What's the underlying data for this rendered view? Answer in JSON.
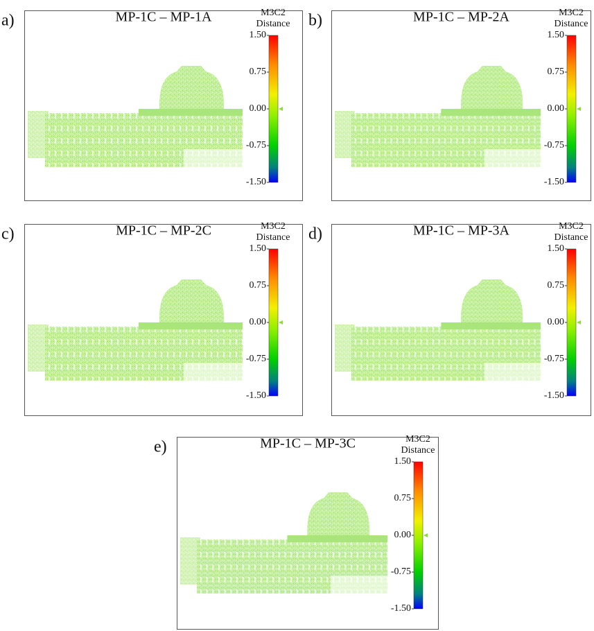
{
  "panels": [
    {
      "label": "a)",
      "title": "MP-1C – MP-1A",
      "colorbar": {
        "title": [
          "M3C2",
          "Distance"
        ],
        "lim": [
          -1.5,
          1.5
        ],
        "ticks": [
          {
            "value": 1.5,
            "label": "1.50"
          },
          {
            "value": 0.75,
            "label": "0.75"
          },
          {
            "value": 0,
            "label": "0.00"
          },
          {
            "value": -0.75,
            "label": "-0.75"
          },
          {
            "value": -1.5,
            "label": "-1.50"
          }
        ]
      }
    },
    {
      "label": "b)",
      "title": "MP-1C – MP-2A",
      "colorbar": {
        "title": [
          "M3C2",
          "Distance"
        ],
        "lim": [
          -1.5,
          1.5
        ],
        "ticks": [
          {
            "value": 1.5,
            "label": "1.50"
          },
          {
            "value": 0.75,
            "label": "0.75"
          },
          {
            "value": 0,
            "label": "0.00"
          },
          {
            "value": -0.75,
            "label": "-0.75"
          },
          {
            "value": -1.5,
            "label": "-1.50"
          }
        ]
      }
    },
    {
      "label": "c)",
      "title": "MP-1C – MP-2C",
      "colorbar": {
        "title": [
          "M3C2",
          "Distance"
        ],
        "lim": [
          -1.5,
          1.5
        ],
        "ticks": [
          {
            "value": 1.5,
            "label": "1.50"
          },
          {
            "value": 0.75,
            "label": "0.75"
          },
          {
            "value": 0,
            "label": "0.00"
          },
          {
            "value": -0.75,
            "label": "-0.75"
          },
          {
            "value": -1.5,
            "label": "-1.50"
          }
        ]
      }
    },
    {
      "label": "d)",
      "title": "MP-1C – MP-3A",
      "colorbar": {
        "title": [
          "M3C2",
          "Distance"
        ],
        "lim": [
          -1.5,
          1.5
        ],
        "ticks": [
          {
            "value": 1.5,
            "label": "1.50"
          },
          {
            "value": 0.75,
            "label": "0.75"
          },
          {
            "value": 0,
            "label": "0.00"
          },
          {
            "value": -0.75,
            "label": "-0.75"
          },
          {
            "value": -1.5,
            "label": "-1.50"
          }
        ]
      }
    },
    {
      "label": "e)",
      "title": "MP-1C – MP-3C",
      "colorbar": {
        "title": [
          "M3C2",
          "Distance"
        ],
        "lim": [
          -1.5,
          1.5
        ],
        "ticks": [
          {
            "value": 1.5,
            "label": "1.50"
          },
          {
            "value": 0.75,
            "label": "0.75"
          },
          {
            "value": 0,
            "label": "0.00"
          },
          {
            "value": -0.75,
            "label": "-0.75"
          },
          {
            "value": -1.5,
            "label": "-1.50"
          }
        ]
      }
    }
  ]
}
